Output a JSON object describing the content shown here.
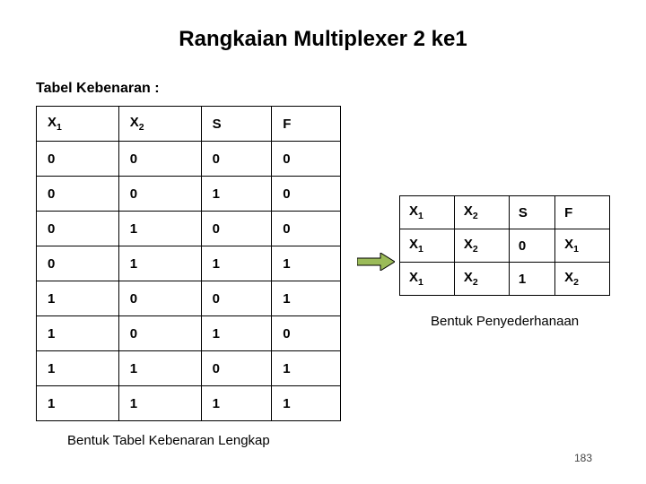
{
  "title": "Rangkaian Multiplexer 2 ke1",
  "subtitle": "Tabel Kebenaran :",
  "truth_table": {
    "headers": [
      {
        "base": "X",
        "sub": "1"
      },
      {
        "base": "X",
        "sub": "2"
      },
      {
        "base": "S",
        "sub": ""
      },
      {
        "base": "F",
        "sub": ""
      }
    ],
    "rows": [
      [
        "0",
        "0",
        "0",
        "0"
      ],
      [
        "0",
        "0",
        "1",
        "0"
      ],
      [
        "0",
        "1",
        "0",
        "0"
      ],
      [
        "0",
        "1",
        "1",
        "1"
      ],
      [
        "1",
        "0",
        "0",
        "1"
      ],
      [
        "1",
        "0",
        "1",
        "0"
      ],
      [
        "1",
        "1",
        "0",
        "1"
      ],
      [
        "1",
        "1",
        "1",
        "1"
      ]
    ],
    "border_color": "#000000",
    "font_size": 15
  },
  "simpl_table": {
    "headers": [
      {
        "base": "X",
        "sub": "1"
      },
      {
        "base": "X",
        "sub": "2"
      },
      {
        "base": "S",
        "sub": ""
      },
      {
        "base": "F",
        "sub": ""
      }
    ],
    "rows": [
      [
        {
          "base": "X",
          "sub": "1"
        },
        {
          "base": "X",
          "sub": "2"
        },
        {
          "base": "0",
          "sub": ""
        },
        {
          "base": "X",
          "sub": "1"
        }
      ],
      [
        {
          "base": "X",
          "sub": "1"
        },
        {
          "base": "X",
          "sub": "2"
        },
        {
          "base": "1",
          "sub": ""
        },
        {
          "base": "X",
          "sub": "2"
        }
      ]
    ],
    "border_color": "#000000",
    "font_size": 15
  },
  "arrow": {
    "fill": "#9bbb59",
    "stroke": "#000000"
  },
  "caption1": "Bentuk Tabel Kebenaran Lengkap",
  "caption2": "Bentuk Penyederhanaan",
  "page_number": "183",
  "colors": {
    "background": "#ffffff",
    "text": "#000000"
  }
}
